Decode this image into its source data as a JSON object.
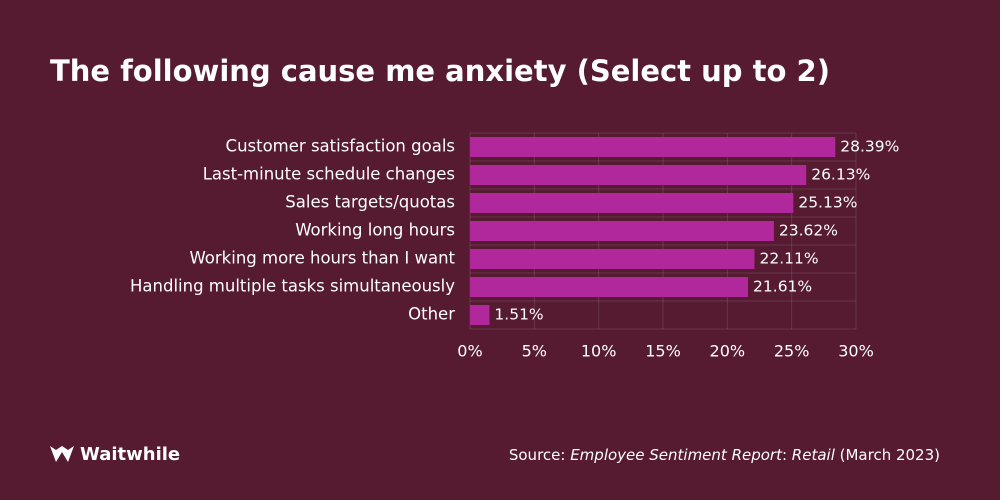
{
  "chart_data": {
    "type": "hbar",
    "title": "The following cause me anxiety (Select up to 2)",
    "categories": [
      "Customer satisfaction goals",
      "Last-minute schedule changes",
      "Sales targets/quotas",
      "Working long hours",
      "Working more hours than I want",
      "Handling multiple tasks simultaneously",
      "Other"
    ],
    "values": [
      28.39,
      26.13,
      25.13,
      23.62,
      22.11,
      21.61,
      1.51
    ],
    "value_labels": [
      "28.39%",
      "26.13%",
      "25.13%",
      "23.62%",
      "22.11%",
      "21.61%",
      "1.51%"
    ],
    "color": "#b0289b",
    "xlim": [
      0,
      30
    ],
    "xticks": [
      {
        "value": 0,
        "label": "0%"
      },
      {
        "value": 5,
        "label": "5%"
      },
      {
        "value": 10,
        "label": "10%"
      },
      {
        "value": 15,
        "label": "15%"
      },
      {
        "value": 20,
        "label": "20%"
      },
      {
        "value": 25,
        "label": "25%"
      },
      {
        "value": 30,
        "label": "30%"
      }
    ],
    "grid": true,
    "source": [
      {
        "text": "Source: ",
        "italic": false
      },
      {
        "text": "Employee Sentiment Report",
        "italic": true
      },
      {
        "text": ": ",
        "italic": false
      },
      {
        "text": "Retail",
        "italic": true
      },
      {
        "text": " (March 2023)",
        "italic": false
      }
    ],
    "brand": "Waitwhile"
  }
}
